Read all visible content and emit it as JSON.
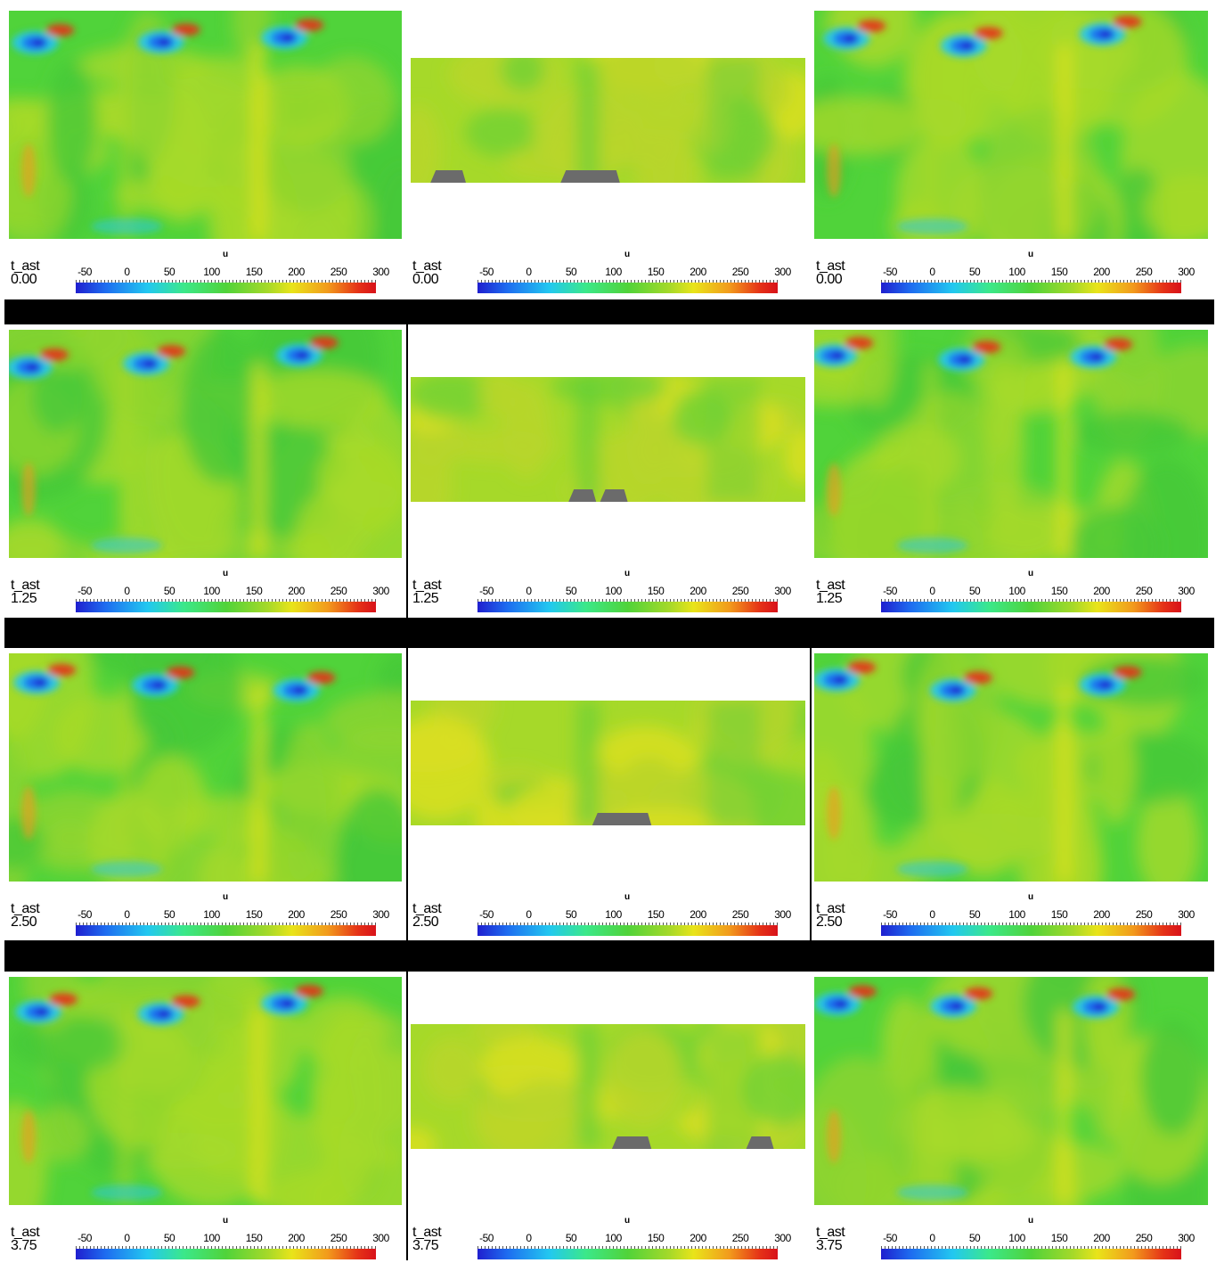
{
  "time_label": "t_ast",
  "colorbar": {
    "variable": "u",
    "ticks": [
      "-50",
      "0",
      "50",
      "100",
      "150",
      "200",
      "250",
      "300"
    ]
  },
  "colormap": [
    "#1f1fcf",
    "#1e6df0",
    "#22c8f0",
    "#3be88a",
    "#50d33a",
    "#a6d929",
    "#e9e41a",
    "#f29a1c",
    "#e53217",
    "#d8121a"
  ],
  "rows": [
    {
      "time": "0.00"
    },
    {
      "time": "1.25"
    },
    {
      "time": "2.50"
    },
    {
      "time": "3.75"
    }
  ]
}
